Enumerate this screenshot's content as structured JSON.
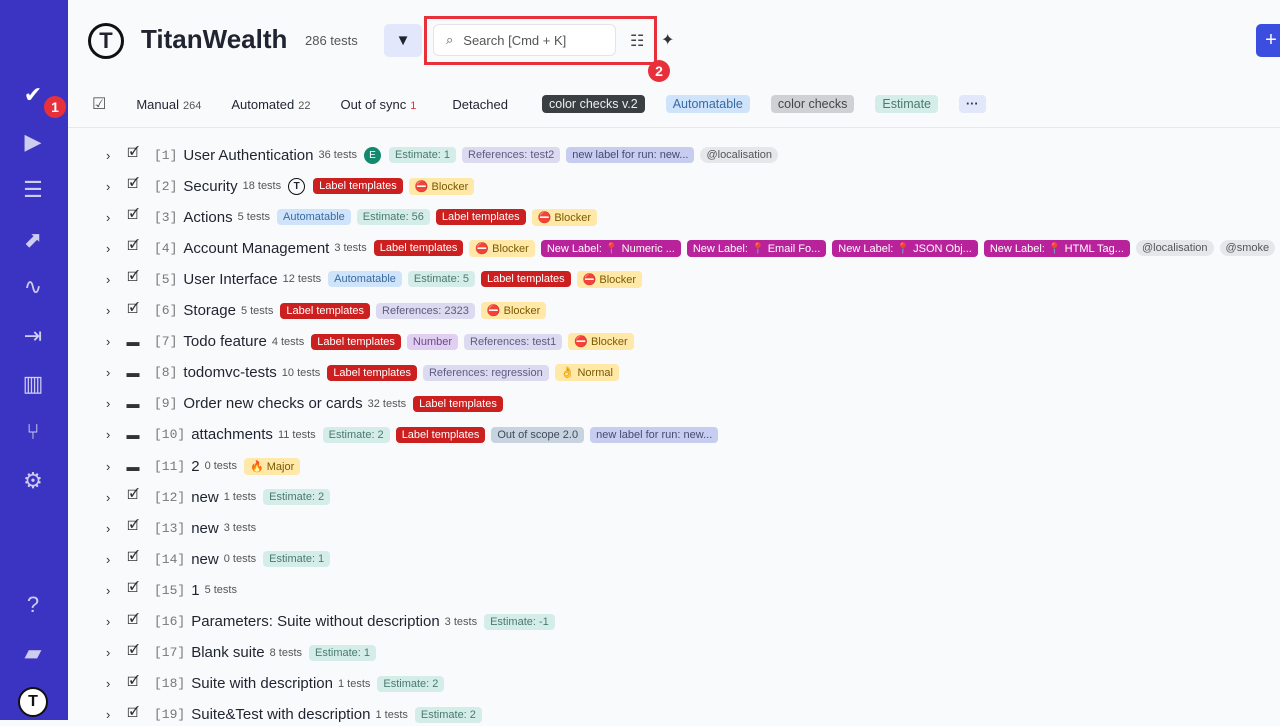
{
  "sidebar": {
    "items": [
      {
        "icon": "check-icon",
        "glyph": "✔"
      },
      {
        "icon": "play-icon",
        "glyph": "▶"
      },
      {
        "icon": "runs-list-icon",
        "glyph": "☰"
      },
      {
        "icon": "steps-icon",
        "glyph": "⬈"
      },
      {
        "icon": "pulse-icon",
        "glyph": "∿"
      },
      {
        "icon": "import-icon",
        "glyph": "⇥"
      },
      {
        "icon": "analytics-icon",
        "glyph": "▥"
      },
      {
        "icon": "branch-icon",
        "glyph": "⑂"
      },
      {
        "icon": "gear-icon",
        "glyph": "⚙"
      }
    ],
    "bottom": [
      {
        "icon": "help-icon",
        "glyph": "?"
      },
      {
        "icon": "folder-icon",
        "glyph": "▰"
      },
      {
        "icon": "logo-icon",
        "glyph": "T"
      }
    ],
    "badge": "1"
  },
  "header": {
    "title": "TitanWealth",
    "count": "286 tests",
    "search_placeholder": "Search [Cmd + K]",
    "annotation": "2",
    "plus": "+"
  },
  "tabs": [
    {
      "label": "Manual",
      "count": "264"
    },
    {
      "label": "Automated",
      "count": "22"
    },
    {
      "label": "Out of sync",
      "count": "1"
    },
    {
      "label": "Detached",
      "count": ""
    }
  ],
  "chips": [
    {
      "label": "color checks v.2",
      "type": "dark"
    },
    {
      "label": "Automatable",
      "type": "auto"
    },
    {
      "label": "color checks",
      "type": "gray"
    },
    {
      "label": "Estimate",
      "type": "est"
    },
    {
      "label": "···",
      "type": "more"
    }
  ],
  "colors": {
    "sidebar": "#3b34c2",
    "accent": "#3b4ee0",
    "annotation": "#e8303b"
  },
  "rows": [
    {
      "n": "[1]",
      "icon": "file",
      "name": "User Authentication",
      "tests": "36 tests",
      "avatar": "E",
      "labels": [
        [
          "Estimate: 1",
          "est"
        ],
        [
          "References: test2",
          "ref"
        ],
        [
          "new label for run: new...",
          "run"
        ],
        [
          "@localisation",
          "tag"
        ]
      ]
    },
    {
      "n": "[2]",
      "icon": "file",
      "name": "Security",
      "tests": "18 tests",
      "avatar": "T",
      "labels": [
        [
          "Label templates",
          "red"
        ],
        [
          "⛔ Blocker",
          "yel"
        ]
      ]
    },
    {
      "n": "[3]",
      "icon": "file",
      "name": "Actions",
      "tests": "5 tests",
      "labels": [
        [
          "Automatable",
          "auto"
        ],
        [
          "Estimate: 56",
          "est"
        ],
        [
          "Label templates",
          "red"
        ],
        [
          "⛔ Blocker",
          "yel"
        ]
      ]
    },
    {
      "n": "[4]",
      "icon": "file",
      "name": "Account Management",
      "tests": "3 tests",
      "labels": [
        [
          "Label templates",
          "red"
        ],
        [
          "⛔ Blocker",
          "yel"
        ],
        [
          "New Label: 📍 Numeric ...",
          "mag"
        ],
        [
          "New Label: 📍 Email Fo...",
          "mag"
        ],
        [
          "New Label: 📍 JSON Obj...",
          "mag"
        ],
        [
          "New Label: 📍 HTML Tag...",
          "mag"
        ],
        [
          "@localisation",
          "tag"
        ],
        [
          "@smoke",
          "tag"
        ]
      ]
    },
    {
      "n": "[5]",
      "icon": "file",
      "name": "User Interface",
      "tests": "12 tests",
      "labels": [
        [
          "Automatable",
          "auto"
        ],
        [
          "Estimate: 5",
          "est"
        ],
        [
          "Label templates",
          "red"
        ],
        [
          "⛔ Blocker",
          "yel"
        ]
      ]
    },
    {
      "n": "[6]",
      "icon": "file",
      "name": "Storage",
      "tests": "5 tests",
      "labels": [
        [
          "Label templates",
          "red"
        ],
        [
          "References: 2323",
          "ref"
        ],
        [
          "⛔ Blocker",
          "yel"
        ]
      ]
    },
    {
      "n": "[7]",
      "icon": "folder",
      "name": "Todo feature",
      "tests": "4 tests",
      "labels": [
        [
          "Label templates",
          "red"
        ],
        [
          "Number",
          "num"
        ],
        [
          "References: test1",
          "ref"
        ],
        [
          "⛔ Blocker",
          "yel"
        ]
      ]
    },
    {
      "n": "[8]",
      "icon": "folder",
      "name": "todomvc-tests",
      "tests": "10 tests",
      "labels": [
        [
          "Label templates",
          "red"
        ],
        [
          "References: regression",
          "ref"
        ],
        [
          "👌 Normal",
          "yel"
        ]
      ]
    },
    {
      "n": "[9]",
      "icon": "folder",
      "name": "Order new checks or cards",
      "tests": "32 tests",
      "labels": [
        [
          "Label templates",
          "red"
        ]
      ]
    },
    {
      "n": "[10]",
      "icon": "folder",
      "name": "attachments",
      "tests": "11 tests",
      "labels": [
        [
          "Estimate: 2",
          "est"
        ],
        [
          "Label templates",
          "red"
        ],
        [
          "Out of scope 2.0",
          "scope"
        ],
        [
          "new label for run: new...",
          "run"
        ]
      ]
    },
    {
      "n": "[11]",
      "icon": "folder",
      "name": "2",
      "tests": "0 tests",
      "labels": [
        [
          "🔥 Major",
          "yel"
        ]
      ]
    },
    {
      "n": "[12]",
      "icon": "file",
      "name": "new",
      "tests": "1 tests",
      "labels": [
        [
          "Estimate: 2",
          "est"
        ]
      ]
    },
    {
      "n": "[13]",
      "icon": "file",
      "name": "new",
      "tests": "3 tests",
      "labels": []
    },
    {
      "n": "[14]",
      "icon": "file",
      "name": "new",
      "tests": "0 tests",
      "labels": [
        [
          "Estimate: 1",
          "est"
        ]
      ]
    },
    {
      "n": "[15]",
      "icon": "file",
      "name": "1",
      "tests": "5 tests",
      "labels": []
    },
    {
      "n": "[16]",
      "icon": "file",
      "name": "Parameters: Suite without description",
      "tests": "3 tests",
      "labels": [
        [
          "Estimate: -1",
          "est"
        ]
      ]
    },
    {
      "n": "[17]",
      "icon": "file",
      "name": "Blank suite",
      "tests": "8 tests",
      "labels": [
        [
          "Estimate: 1",
          "est"
        ]
      ]
    },
    {
      "n": "[18]",
      "icon": "file",
      "name": "Suite with description",
      "tests": "1 tests",
      "labels": [
        [
          "Estimate: 2",
          "est"
        ]
      ]
    },
    {
      "n": "[19]",
      "icon": "file",
      "name": "Suite&Test with description",
      "tests": "1 tests",
      "labels": [
        [
          "Estimate: 2",
          "est"
        ]
      ]
    }
  ]
}
